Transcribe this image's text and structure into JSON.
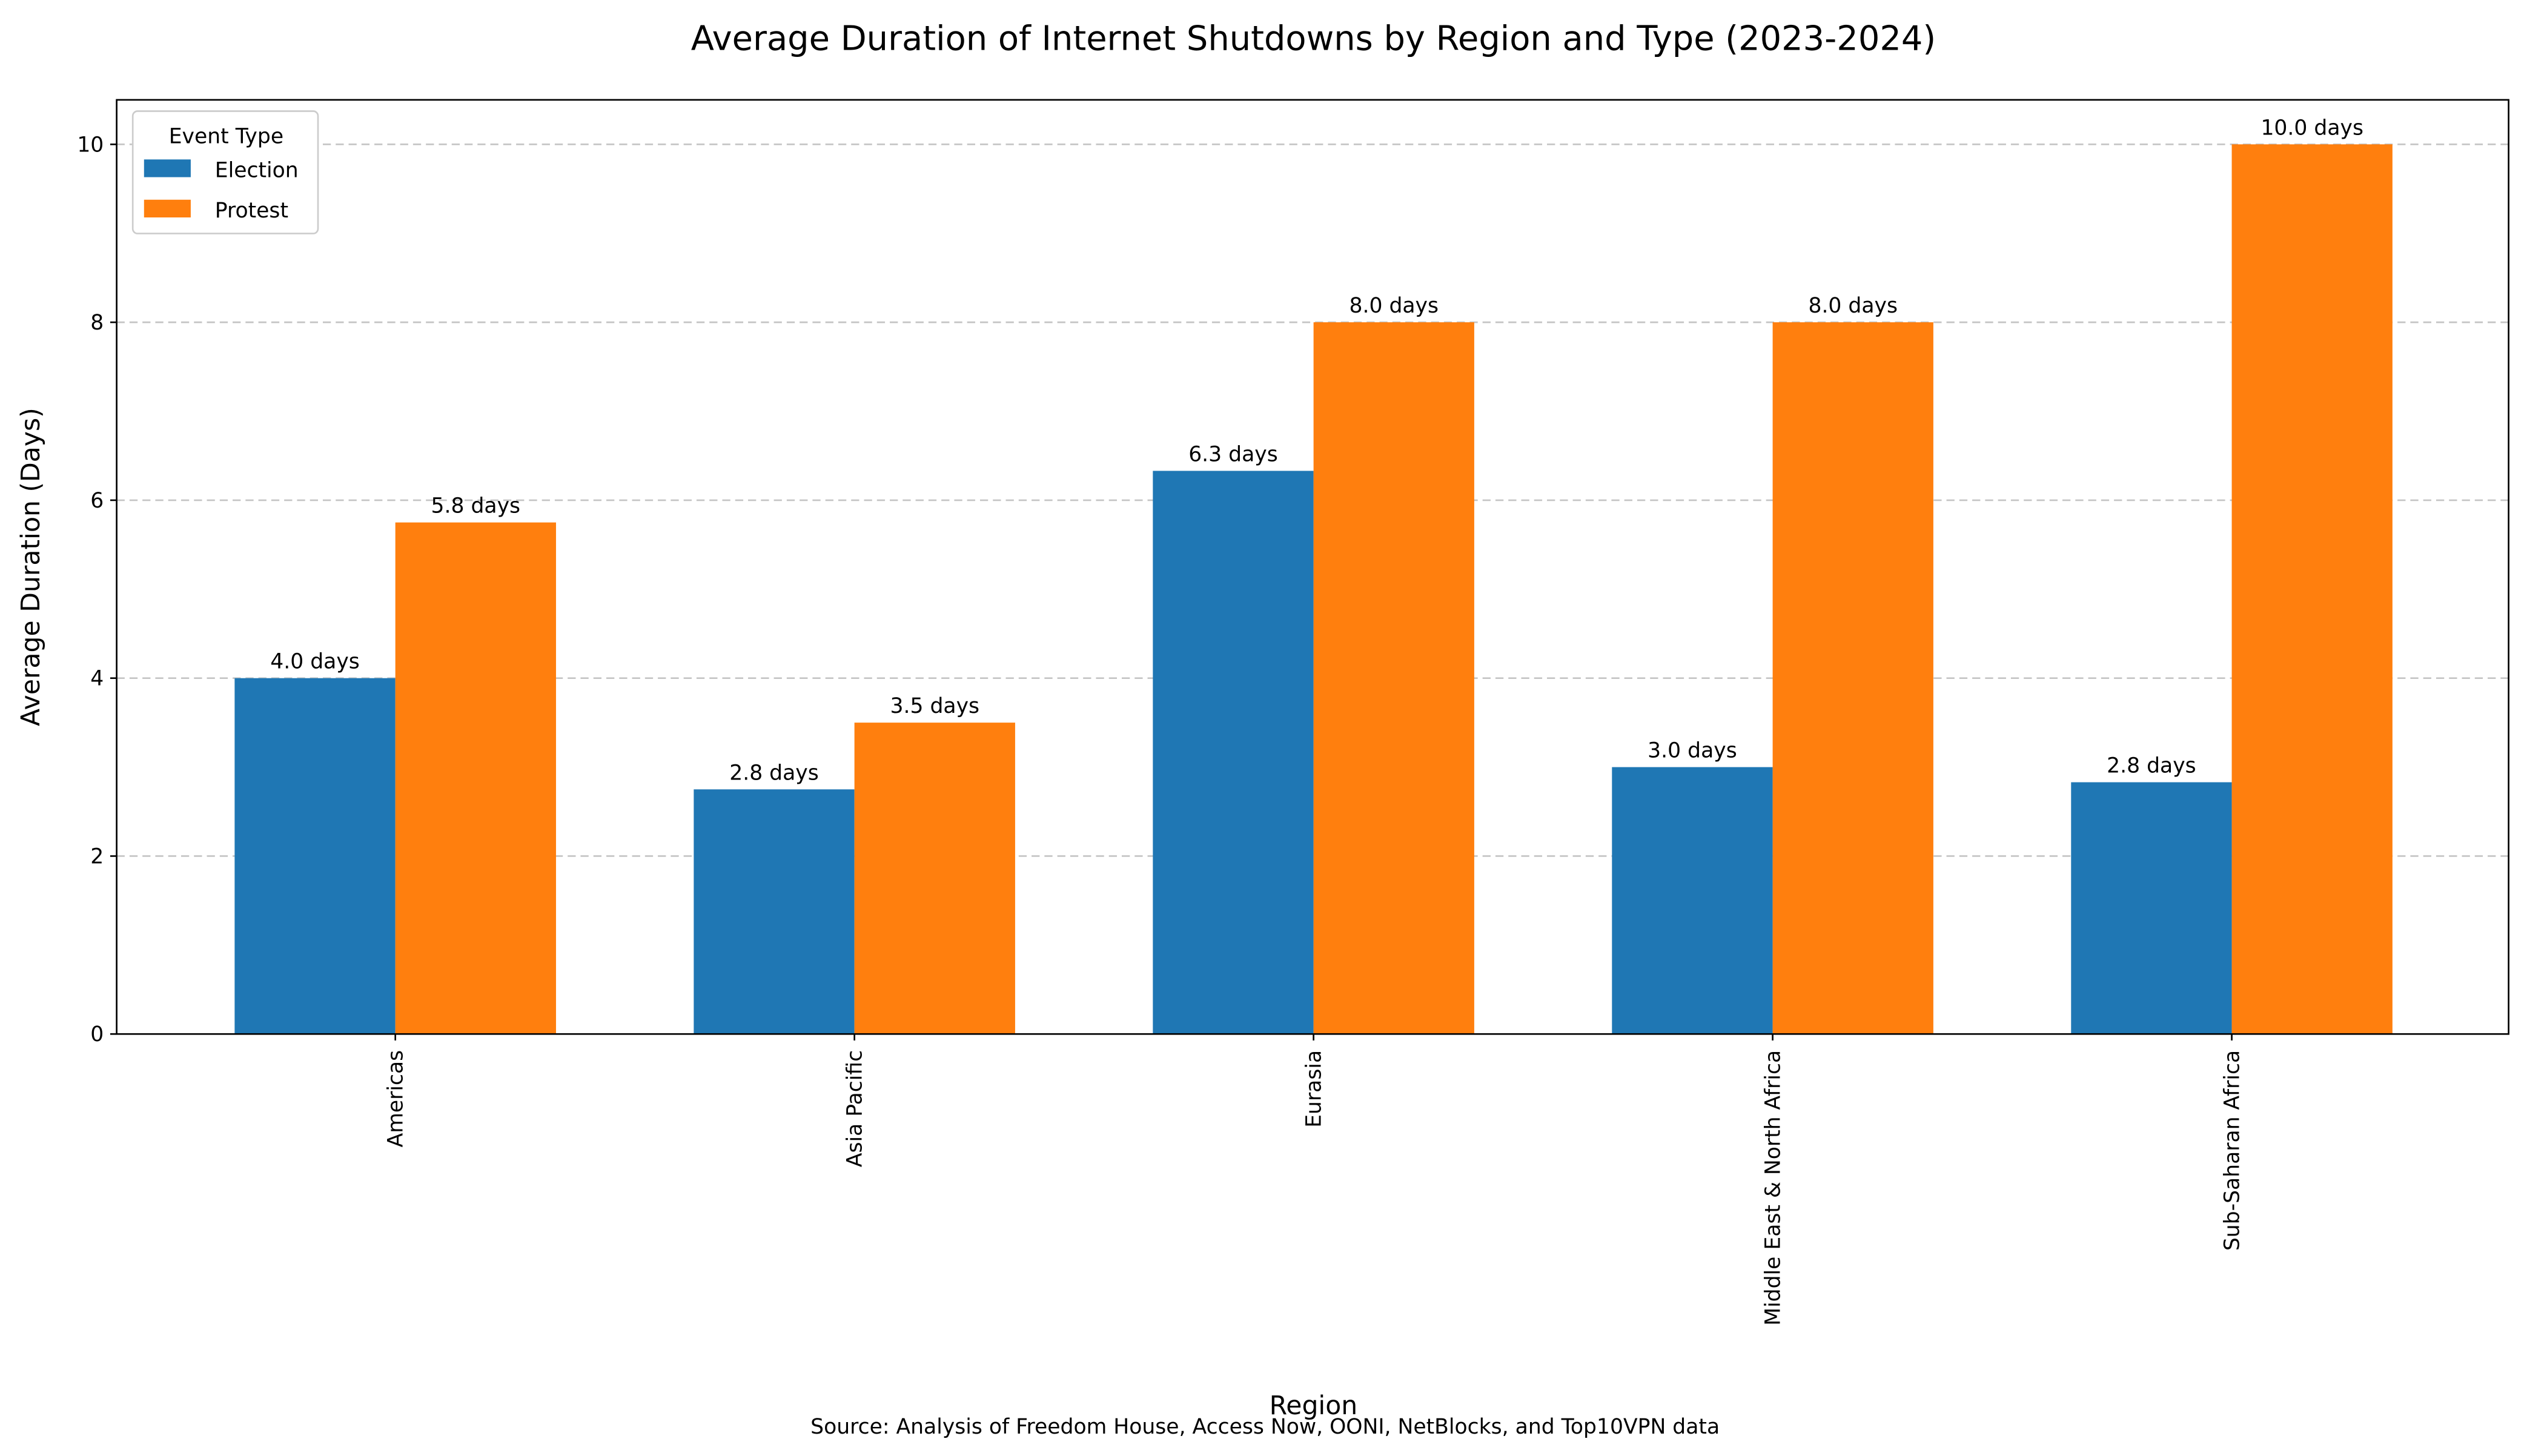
{
  "chart_data": {
    "type": "bar",
    "title": "Average Duration of Internet Shutdowns by Region and Type (2023-2024)",
    "xlabel": "Region",
    "ylabel": "Average Duration (Days)",
    "caption": "Source: Analysis of Freedom House, Access Now, OONI, NetBlocks, and Top10VPN data",
    "categories": [
      "Americas",
      "Asia Pacific",
      "Eurasia",
      "Middle East & North Africa",
      "Sub-Saharan Africa"
    ],
    "series": [
      {
        "name": "Election",
        "color": "#1f77b4",
        "values": [
          4.0,
          2.75,
          6.33,
          3.0,
          2.83
        ],
        "labels": [
          "4.0 days",
          "2.8 days",
          "6.3 days",
          "3.0 days",
          "2.8 days"
        ]
      },
      {
        "name": "Protest",
        "color": "#ff7f0e",
        "values": [
          5.75,
          3.5,
          8.0,
          8.0,
          10.0
        ],
        "labels": [
          "5.8 days",
          "3.5 days",
          "8.0 days",
          "8.0 days",
          "10.0 days"
        ]
      }
    ],
    "ylim": [
      0,
      10.5
    ],
    "yticks": [
      "0",
      "2",
      "4",
      "6",
      "8",
      "10"
    ],
    "grid": "y-dashed",
    "legend": {
      "title": "Event Type",
      "placement": "top-left"
    }
  }
}
